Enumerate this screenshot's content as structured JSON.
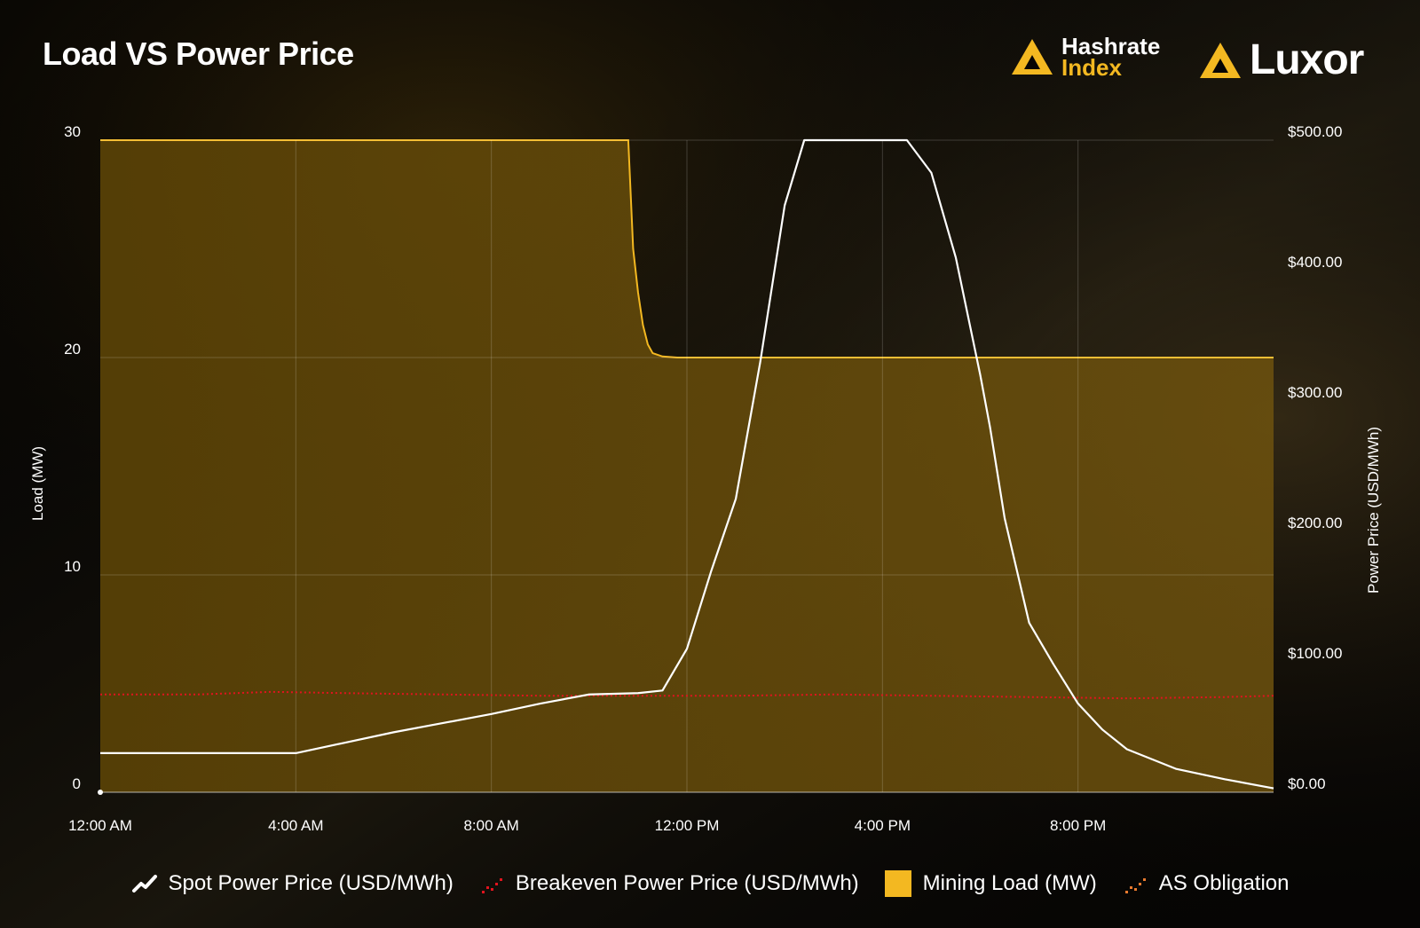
{
  "title": "Load VS Power Price",
  "brands": {
    "hashrate_line1": "Hashrate",
    "hashrate_line2": "Index",
    "luxor": "Luxor",
    "hashrate_icon": "hashrate-index-logo-icon",
    "luxor_icon": "luxor-logo-icon"
  },
  "colors": {
    "load": "#f3b821",
    "spot": "#ffffff",
    "breakeven": "#e0141e",
    "as_obligation": "#e87a2e"
  },
  "legend": [
    {
      "key": "spot",
      "label": "Spot Power Price (USD/MWh)",
      "icon": "line-chart-icon"
    },
    {
      "key": "breakeven",
      "label": "Breakeven Power Price (USD/MWh)",
      "icon": "dotted-line-icon"
    },
    {
      "key": "load",
      "label": "Mining Load (MW)",
      "icon": "filled-square-icon"
    },
    {
      "key": "as",
      "label": "AS Obligation",
      "icon": "dotted-line-icon"
    }
  ],
  "chart_data": {
    "type": "line",
    "grid": true,
    "legend_position": "bottom",
    "x_axis": {
      "unit": "hours",
      "range": [
        0,
        24
      ],
      "ticks": [
        0,
        4,
        8,
        12,
        16,
        20
      ],
      "tick_labels": [
        "12:00 AM",
        "4:00 AM",
        "8:00 AM",
        "12:00 PM",
        "4:00 PM",
        "8:00 PM"
      ]
    },
    "y_left": {
      "label": "Load (MW)",
      "range": [
        0,
        30
      ],
      "ticks": [
        0,
        10,
        20,
        30
      ],
      "tick_labels": [
        "0",
        "10",
        "20",
        "30"
      ]
    },
    "y_right": {
      "label": "Power Price (USD/MWh)",
      "range": [
        0,
        500
      ],
      "ticks": [
        0,
        100,
        200,
        300,
        400,
        500
      ],
      "tick_labels": [
        "$0.00",
        "$100.00",
        "$200.00",
        "$300.00",
        "$400.00",
        "$500.00"
      ]
    },
    "series": [
      {
        "key": "load",
        "name": "Mining Load (MW)",
        "type": "area",
        "axis": "left",
        "x": [
          0,
          10.8,
          10.9,
          11.0,
          11.1,
          11.2,
          11.3,
          11.5,
          11.8,
          24
        ],
        "y": [
          30,
          30,
          25,
          23,
          21.5,
          20.6,
          20.2,
          20.05,
          20,
          20
        ]
      },
      {
        "key": "spot",
        "name": "Spot Power Price (USD/MWh)",
        "type": "line",
        "axis": "right",
        "x": [
          0,
          4,
          5,
          6,
          7,
          8,
          9,
          10,
          11,
          11.5,
          12,
          12.5,
          13,
          13.5,
          14,
          14.4,
          14.7,
          15.5,
          16.5,
          17,
          17.5,
          18,
          18.2,
          18.5,
          19,
          19.5,
          20,
          20.5,
          21,
          22,
          23,
          24
        ],
        "y": [
          30,
          30,
          38,
          46,
          53,
          60,
          68,
          75,
          76,
          78,
          110,
          170,
          225,
          330,
          450,
          500,
          500,
          500,
          500,
          475,
          410,
          320,
          280,
          210,
          130,
          98,
          68,
          48,
          33,
          18,
          10,
          3
        ]
      },
      {
        "key": "breakeven",
        "name": "Breakeven Power Price (USD/MWh)",
        "type": "line",
        "style": "dotted",
        "axis": "right",
        "x": [
          0,
          2,
          3.5,
          5,
          7,
          9,
          11,
          13,
          15,
          17,
          19,
          21,
          23,
          24
        ],
        "y": [
          75,
          75,
          77,
          76,
          75,
          74,
          74,
          74,
          75,
          74,
          73,
          72,
          73,
          74
        ]
      },
      {
        "key": "as",
        "name": "AS Obligation",
        "type": "line",
        "style": "dotted",
        "axis": "left",
        "x": [],
        "y": []
      }
    ]
  }
}
